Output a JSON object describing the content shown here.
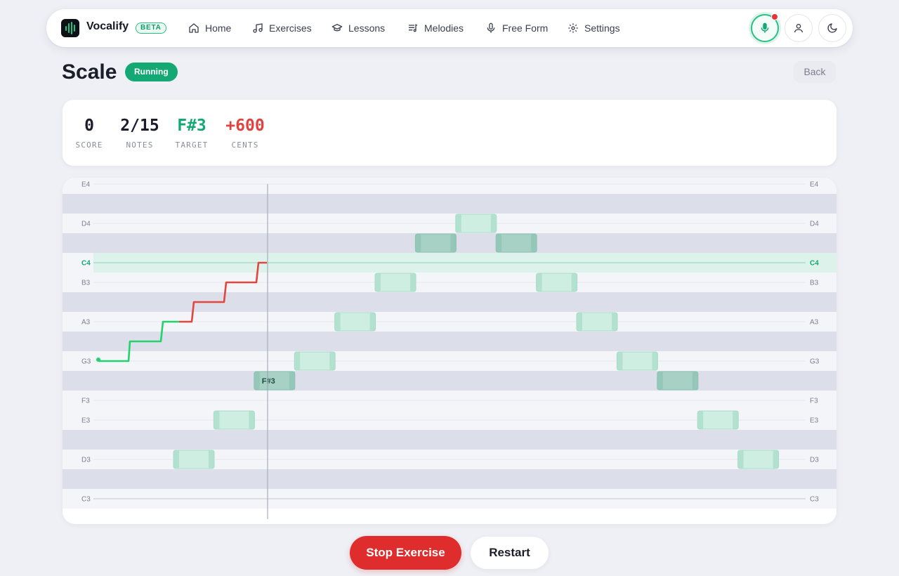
{
  "app": {
    "name": "Vocalify",
    "badge": "BETA"
  },
  "nav": {
    "items": [
      {
        "label": "Home",
        "icon": "home-icon"
      },
      {
        "label": "Exercises",
        "icon": "music-note-icon"
      },
      {
        "label": "Lessons",
        "icon": "graduation-cap-icon"
      },
      {
        "label": "Melodies",
        "icon": "music-list-icon"
      },
      {
        "label": "Free Form",
        "icon": "microphone-icon"
      },
      {
        "label": "Settings",
        "icon": "gear-icon"
      }
    ],
    "actions": [
      "microphone-icon",
      "user-icon",
      "moon-icon"
    ],
    "recording": true
  },
  "header": {
    "title": "Scale",
    "status": "Running",
    "back_label": "Back"
  },
  "stats": [
    {
      "value": "0",
      "label": "SCORE",
      "color": "#1b1d2b"
    },
    {
      "value": "2/15",
      "label": "NOTES",
      "color": "#1b1d2b"
    },
    {
      "value": "F#3",
      "label": "TARGET",
      "color": "#14a974"
    },
    {
      "value": "+600",
      "label": "CENTS",
      "color": "#e0433f"
    }
  ],
  "pitch_chart": {
    "notes_top_to_bottom": [
      "E4",
      "D#4",
      "D4",
      "C#4",
      "C4",
      "B3",
      "A#3",
      "A3",
      "G#3",
      "G3",
      "F#3",
      "F3",
      "E3",
      "D#3",
      "D3",
      "C#3",
      "C3"
    ],
    "labels": [
      "E4",
      "D4",
      "C4",
      "B3",
      "A3",
      "G3",
      "F3",
      "E3",
      "D3",
      "C3"
    ],
    "highlight_note": "C4",
    "target_note": "F#3",
    "target_label": "F#3",
    "exercise_notes": [
      "D3",
      "E3",
      "F#3",
      "G3",
      "A3",
      "B3",
      "C#4",
      "D4",
      "C#4",
      "B3",
      "A3",
      "G3",
      "F#3",
      "E3",
      "D3"
    ],
    "colors": {
      "accent": "#14a974",
      "sung_on_pitch": "#22d26f",
      "sung_off_pitch": "#e2463d",
      "note_block": "#bfe8d8",
      "note_block_dark": "#9ccfc0"
    }
  },
  "controls": {
    "stop_label": "Stop Exercise",
    "restart_label": "Restart"
  }
}
